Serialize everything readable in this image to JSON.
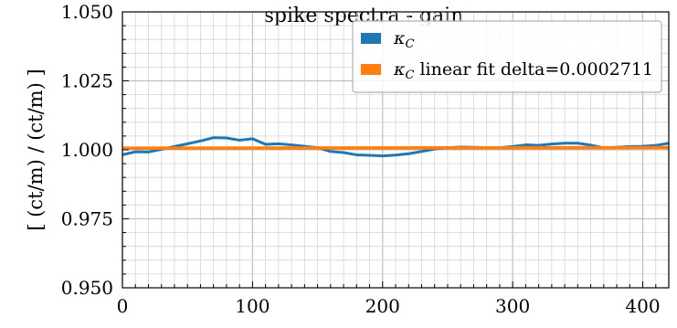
{
  "chart_data": {
    "type": "line",
    "title": "spike spectra - gain",
    "xlabel": "",
    "ylabel": "[ (ct/m) / (ct/m) ]",
    "xlim": [
      0,
      420
    ],
    "ylim": [
      0.95,
      1.05
    ],
    "x_ticks": [
      0,
      100,
      200,
      300,
      400
    ],
    "x_tick_labels": [
      "0",
      "100",
      "200",
      "300",
      "400"
    ],
    "y_ticks": [
      0.95,
      0.975,
      1.0,
      1.025,
      1.05
    ],
    "y_tick_labels": [
      "0.950",
      "0.975",
      "1.000",
      "1.025",
      "1.050"
    ],
    "grid": true,
    "legend_position": "top-right",
    "series": [
      {
        "name": "κ_C",
        "legend_main": "κ",
        "legend_sub": "C",
        "color": "#1f77b4",
        "x": [
          0,
          10,
          20,
          30,
          40,
          50,
          60,
          70,
          80,
          90,
          100,
          110,
          120,
          130,
          140,
          150,
          160,
          170,
          180,
          190,
          200,
          210,
          220,
          230,
          240,
          250,
          260,
          270,
          280,
          290,
          300,
          310,
          320,
          330,
          340,
          350,
          360,
          370,
          380,
          390,
          400,
          410,
          420
        ],
        "y": [
          0.9982,
          0.9993,
          0.9992,
          1.0002,
          1.0012,
          1.0022,
          1.0032,
          1.0044,
          1.0043,
          1.0035,
          1.004,
          1.002,
          1.0022,
          1.0018,
          1.0013,
          1.0008,
          0.9994,
          0.999,
          0.9982,
          0.998,
          0.9978,
          0.9981,
          0.9986,
          0.9994,
          1.0003,
          1.0008,
          1.001,
          1.0009,
          1.0008,
          1.0008,
          1.0012,
          1.0018,
          1.0016,
          1.0021,
          1.0024,
          1.0024,
          1.0017,
          1.0007,
          1.0009,
          1.0012,
          1.0013,
          1.0016,
          1.0024
        ]
      },
      {
        "name": "κ_C linear fit delta=0.0002711",
        "legend_main": "κ",
        "legend_sub": "C",
        "legend_rest": " linear fit delta=0.0002711",
        "color": "#ff7f0e",
        "x": [
          0,
          420
        ],
        "y": [
          1.0006,
          1.0008
        ]
      }
    ]
  }
}
